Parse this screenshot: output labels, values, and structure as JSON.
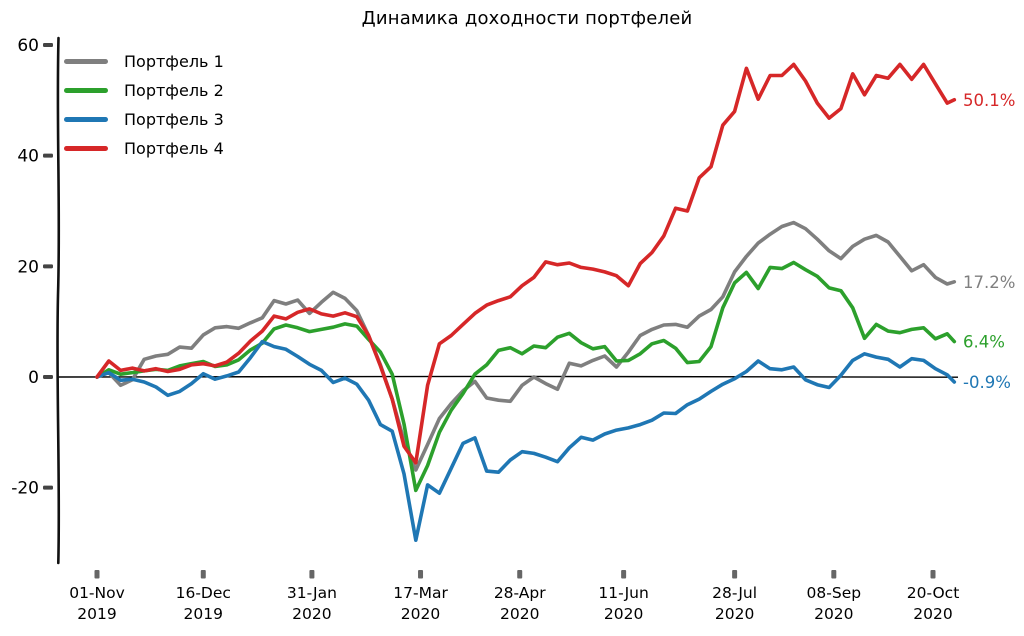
{
  "chart_data": {
    "type": "line",
    "title": "Динамика доходности портфелей",
    "style": "xkcd-hand-drawn",
    "grid": false,
    "legend_position": "upper-left",
    "xlabel": "",
    "ylabel": "",
    "y_axis": {
      "ticks": [
        60,
        40,
        20,
        0,
        -20
      ],
      "range": [
        -32,
        62
      ],
      "zero_line": true
    },
    "x_axis": {
      "unit": "days since 2019-11-01",
      "range": [
        0,
        367
      ],
      "tick_days": [
        0,
        45,
        91,
        137,
        179,
        223,
        270,
        312,
        354
      ],
      "tick_labels": [
        [
          "01-Nov",
          "2019"
        ],
        [
          "16-Dec",
          "2019"
        ],
        [
          "31-Jan",
          "2020"
        ],
        [
          "17-Mar",
          "2020"
        ],
        [
          "28-Apr",
          "2020"
        ],
        [
          "11-Jun",
          "2020"
        ],
        [
          "28-Jul",
          "2020"
        ],
        [
          "08-Sep",
          "2020"
        ],
        [
          "20-Oct",
          "2020"
        ]
      ]
    },
    "days": [
      0,
      5,
      10,
      15,
      20,
      25,
      30,
      35,
      40,
      45,
      50,
      55,
      60,
      65,
      70,
      75,
      80,
      85,
      90,
      95,
      100,
      105,
      110,
      115,
      120,
      125,
      130,
      135,
      140,
      145,
      150,
      155,
      160,
      165,
      170,
      175,
      180,
      185,
      190,
      195,
      200,
      205,
      210,
      215,
      220,
      225,
      230,
      235,
      240,
      245,
      250,
      255,
      260,
      265,
      270,
      275,
      280,
      285,
      290,
      295,
      300,
      305,
      310,
      315,
      320,
      325,
      330,
      335,
      340,
      345,
      350,
      355,
      360,
      363
    ],
    "series": [
      {
        "name": "Портфель 1",
        "color": "#7f7f7f",
        "end_label": "17.2%",
        "final_value": 17.2,
        "values": [
          0,
          0.8,
          -1.5,
          -0.5,
          3.2,
          3.8,
          4.1,
          5.4,
          5.2,
          7.6,
          8.9,
          9.1,
          8.8,
          9.8,
          10.7,
          13.8,
          13.2,
          13.9,
          11.5,
          13.5,
          15.3,
          14.2,
          12.0,
          7.5,
          2.2,
          -4.0,
          -11.5,
          -16.8,
          -12.2,
          -7.5,
          -4.8,
          -2.5,
          -0.8,
          -3.8,
          -4.2,
          -4.4,
          -1.5,
          0.0,
          -1.2,
          -2.2,
          2.5,
          2.0,
          3.0,
          3.8,
          1.8,
          4.5,
          7.5,
          8.6,
          9.4,
          9.5,
          9.0,
          11.0,
          12.2,
          14.5,
          19.0,
          21.8,
          24.2,
          25.8,
          27.2,
          27.9,
          26.8,
          24.9,
          22.8,
          21.4,
          23.6,
          24.9,
          25.6,
          24.4,
          21.8,
          19.2,
          20.3,
          18.0,
          16.8,
          17.2
        ]
      },
      {
        "name": "Портфель 2",
        "color": "#2ca02c",
        "end_label": "6.4%",
        "final_value": 6.4,
        "values": [
          0,
          1.3,
          0.5,
          0.8,
          1.1,
          1.4,
          1.2,
          2.0,
          2.4,
          2.8,
          1.9,
          2.2,
          3.1,
          4.9,
          6.1,
          8.7,
          9.4,
          8.9,
          8.2,
          8.6,
          9.0,
          9.6,
          9.2,
          6.8,
          4.5,
          0.5,
          -8.5,
          -20.5,
          -16.0,
          -10.0,
          -6.0,
          -3.0,
          0.5,
          2.2,
          4.8,
          5.3,
          4.2,
          5.6,
          5.3,
          7.2,
          7.9,
          6.2,
          5.1,
          5.5,
          2.9,
          3.0,
          4.2,
          6.0,
          6.6,
          5.2,
          2.6,
          2.8,
          5.5,
          12.5,
          17.0,
          18.9,
          16.0,
          19.8,
          19.6,
          20.7,
          19.4,
          18.2,
          16.1,
          15.6,
          12.5,
          7.0,
          9.5,
          8.3,
          8.0,
          8.6,
          8.9,
          6.9,
          7.8,
          6.4
        ]
      },
      {
        "name": "Портфель 3",
        "color": "#1f77b4",
        "end_label": "-0.9%",
        "final_value": -0.9,
        "values": [
          0,
          0.8,
          -0.6,
          -0.4,
          -0.9,
          -1.8,
          -3.3,
          -2.6,
          -1.2,
          0.6,
          -0.4,
          0.2,
          0.9,
          3.5,
          6.4,
          5.5,
          5.0,
          3.7,
          2.3,
          1.2,
          -1.0,
          -0.2,
          -1.3,
          -4.2,
          -8.6,
          -9.8,
          -17.5,
          -29.5,
          -19.5,
          -21.0,
          -16.5,
          -12.0,
          -11.0,
          -17.0,
          -17.2,
          -15.0,
          -13.5,
          -13.8,
          -14.5,
          -15.3,
          -12.8,
          -10.9,
          -11.4,
          -10.3,
          -9.6,
          -9.2,
          -8.6,
          -7.8,
          -6.5,
          -6.6,
          -5.0,
          -4.0,
          -2.6,
          -1.3,
          -0.3,
          1.0,
          2.9,
          1.5,
          1.3,
          1.8,
          -0.5,
          -1.4,
          -1.9,
          0.3,
          3.0,
          4.2,
          3.6,
          3.2,
          1.8,
          3.3,
          3.0,
          1.5,
          0.4,
          -0.9
        ]
      },
      {
        "name": "Портфель 4",
        "color": "#d62728",
        "end_label": "50.1%",
        "final_value": 50.1,
        "values": [
          0,
          2.9,
          1.2,
          1.6,
          1.1,
          1.5,
          1.0,
          1.4,
          2.2,
          2.4,
          2.0,
          2.7,
          4.3,
          6.5,
          8.3,
          11.0,
          10.5,
          11.7,
          12.3,
          11.4,
          11.0,
          11.6,
          10.9,
          7.5,
          2.0,
          -4.0,
          -12.5,
          -15.5,
          -1.5,
          6.0,
          7.5,
          9.5,
          11.5,
          13.0,
          13.8,
          14.5,
          16.5,
          18.0,
          20.8,
          20.3,
          20.6,
          19.8,
          19.5,
          19.0,
          18.3,
          16.5,
          20.5,
          22.5,
          25.5,
          30.5,
          30.0,
          36.0,
          38.0,
          45.5,
          48.0,
          55.8,
          50.2,
          54.5,
          54.5,
          56.5,
          53.5,
          49.5,
          46.8,
          48.5,
          54.8,
          51.0,
          54.5,
          54.0,
          56.5,
          53.8,
          56.5,
          53.0,
          49.5,
          50.1
        ]
      }
    ],
    "axis_colors": {
      "spine": "#111111",
      "zero_line": "#000000",
      "tick_mark_y": "#444444",
      "tick_mark_x": "#666666",
      "tick_label": "#000000"
    }
  }
}
